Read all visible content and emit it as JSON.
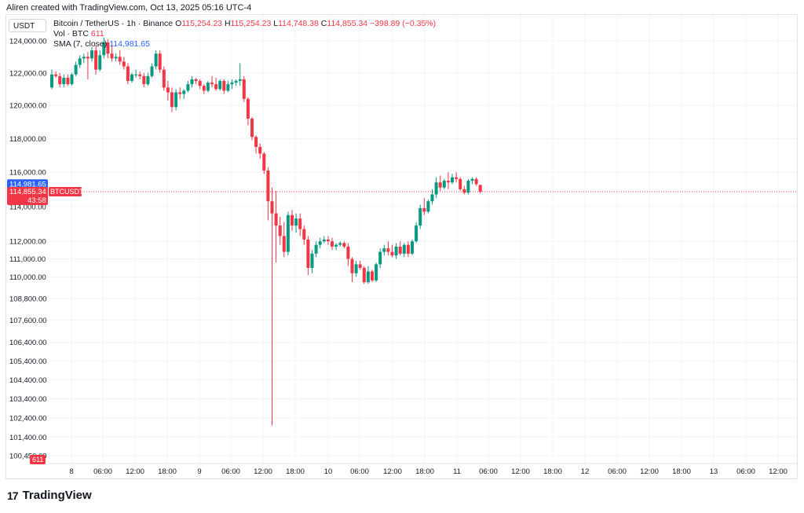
{
  "header": {
    "credit": "Aliren created with TradingView.com, Oct 13, 2025 05:16 UTC-4",
    "currency_badge": "USDT"
  },
  "legend": {
    "symbol": "Bitcoin / TetherUS · 1h · Binance",
    "o_label": "O",
    "o_value": "115,254.23",
    "h_label": "H",
    "h_value": "115,254.23",
    "l_label": "L",
    "l_value": "114,748.38",
    "c_label": "C",
    "c_value": "114,855.34",
    "change": "−398.89 (−0.35%)",
    "vol_label": "Vol · BTC",
    "vol_value": "611",
    "sma_label": "SMA (7, close)",
    "sma_value": "114,981.65"
  },
  "badges": {
    "sma_price": "114,981.65",
    "last_price": "114,855.34",
    "symbol": "BTCUSDT",
    "countdown": "43:58",
    "volume": "611"
  },
  "footer": {
    "logo_text": "TradingView"
  },
  "colors": {
    "up": "#089981",
    "down": "#f23645",
    "sma": "#2962ff",
    "grid": "#f0f3fa"
  },
  "chart_data": {
    "type": "candlestick",
    "y_axis": {
      "scale": "log",
      "tick_labels": [
        "124,000.00",
        "122,000.00",
        "120,000.00",
        "118,000.00",
        "116,000.00",
        "114,000.00",
        "112,000.00",
        "111,000.00",
        "110,000.00",
        "108,800.00",
        "107,600.00",
        "106,400.00",
        "105,400.00",
        "104,400.00",
        "103,400.00",
        "102,400.00",
        "101,400.00",
        "100,450.00"
      ],
      "tick_values": [
        124000,
        122000,
        120000,
        118000,
        116000,
        114000,
        112000,
        111000,
        110000,
        108800,
        107600,
        106400,
        105400,
        104400,
        103400,
        102400,
        101400,
        100450
      ]
    },
    "x_axis": {
      "tick_labels": [
        "8",
        "06:00",
        "12:00",
        "18:00",
        "9",
        "06:00",
        "12:00",
        "18:00",
        "10",
        "06:00",
        "12:00",
        "18:00",
        "11",
        "06:00",
        "12:00",
        "18:00",
        "12",
        "06:00",
        "12:00",
        "18:00",
        "13",
        "06:00",
        "12:00"
      ]
    },
    "candles": [
      [
        121100,
        122200,
        121000,
        121900
      ],
      [
        121900,
        122100,
        121700,
        121800
      ],
      [
        121800,
        122000,
        121100,
        121300
      ],
      [
        121300,
        121900,
        121100,
        121700
      ],
      [
        121700,
        121900,
        121200,
        121300
      ],
      [
        121300,
        122000,
        121200,
        121900
      ],
      [
        121900,
        122700,
        121800,
        122500
      ],
      [
        122500,
        123100,
        122300,
        122900
      ],
      [
        122900,
        123200,
        122600,
        123000
      ],
      [
        123000,
        123300,
        121600,
        122900
      ],
      [
        122900,
        123600,
        122700,
        123400
      ],
      [
        123400,
        123700,
        121900,
        122200
      ],
      [
        122200,
        123400,
        122100,
        123100
      ],
      [
        123100,
        124200,
        122900,
        123900
      ],
      [
        123900,
        124100,
        122900,
        123200
      ],
      [
        123200,
        123700,
        122700,
        122900
      ],
      [
        122900,
        123200,
        122700,
        123000
      ],
      [
        123000,
        123400,
        122500,
        122700
      ],
      [
        122700,
        123000,
        122200,
        122400
      ],
      [
        122400,
        122600,
        121300,
        121500
      ],
      [
        121500,
        122000,
        121400,
        121900
      ],
      [
        121900,
        122200,
        121700,
        121900
      ],
      [
        121900,
        122100,
        121600,
        121800
      ],
      [
        121800,
        122000,
        121100,
        121300
      ],
      [
        121300,
        122000,
        121200,
        121800
      ],
      [
        121800,
        122600,
        121700,
        122400
      ],
      [
        122400,
        123400,
        122200,
        123200
      ],
      [
        123200,
        123400,
        122000,
        122200
      ],
      [
        122200,
        122400,
        120900,
        121100
      ],
      [
        121100,
        121500,
        120300,
        120800
      ],
      [
        120800,
        121100,
        119600,
        119900
      ],
      [
        119900,
        121000,
        119700,
        120800
      ],
      [
        120800,
        121100,
        120400,
        120700
      ],
      [
        120700,
        121000,
        120400,
        120900
      ],
      [
        120900,
        121500,
        120800,
        121300
      ],
      [
        121300,
        121800,
        121100,
        121600
      ],
      [
        121600,
        121700,
        121300,
        121500
      ],
      [
        121500,
        121600,
        121000,
        121200
      ],
      [
        121200,
        121300,
        120700,
        120900
      ],
      [
        120900,
        121500,
        120800,
        121400
      ],
      [
        121400,
        121800,
        121100,
        121300
      ],
      [
        121300,
        121700,
        120900,
        121000
      ],
      [
        121000,
        121600,
        120900,
        121500
      ],
      [
        121500,
        121600,
        120700,
        120900
      ],
      [
        120900,
        121500,
        120800,
        121300
      ],
      [
        121300,
        121600,
        121000,
        121400
      ],
      [
        121400,
        121600,
        121200,
        121500
      ],
      [
        121500,
        122600,
        121200,
        121600
      ],
      [
        121600,
        121800,
        120200,
        120400
      ],
      [
        120400,
        120500,
        118800,
        119200
      ],
      [
        119200,
        119300,
        117900,
        118100
      ],
      [
        118100,
        118200,
        117100,
        117500
      ],
      [
        117500,
        117700,
        116800,
        117100
      ],
      [
        117100,
        117200,
        115900,
        116100
      ],
      [
        116100,
        116300,
        113200,
        114300
      ],
      [
        114300,
        115100,
        102000,
        113600
      ],
      [
        113600,
        114900,
        110800,
        112900
      ],
      [
        112900,
        113400,
        111800,
        112300
      ],
      [
        112300,
        113100,
        111100,
        111400
      ],
      [
        111400,
        113700,
        111200,
        113500
      ],
      [
        113500,
        113800,
        112600,
        112900
      ],
      [
        112900,
        113600,
        112500,
        113300
      ],
      [
        113300,
        113600,
        112300,
        112700
      ],
      [
        112700,
        112900,
        111800,
        112100
      ],
      [
        112100,
        112300,
        110100,
        110500
      ],
      [
        110500,
        111500,
        110200,
        111300
      ],
      [
        111300,
        112000,
        111100,
        111800
      ],
      [
        111800,
        112200,
        111600,
        112000
      ],
      [
        112000,
        112300,
        111900,
        112100
      ],
      [
        112100,
        112300,
        111800,
        112000
      ],
      [
        112000,
        112200,
        111500,
        111700
      ],
      [
        111700,
        111900,
        111500,
        111800
      ],
      [
        111800,
        112000,
        111700,
        111900
      ],
      [
        111900,
        112000,
        111600,
        111700
      ],
      [
        111700,
        111900,
        110600,
        111000
      ],
      [
        111000,
        111100,
        109700,
        110200
      ],
      [
        110200,
        110900,
        110000,
        110700
      ],
      [
        110700,
        110900,
        110400,
        110500
      ],
      [
        110500,
        110600,
        109600,
        109700
      ],
      [
        109700,
        110600,
        109600,
        110300
      ],
      [
        110300,
        110400,
        109700,
        109800
      ],
      [
        109800,
        110800,
        109700,
        110700
      ],
      [
        110700,
        111600,
        110500,
        111400
      ],
      [
        111400,
        111800,
        111200,
        111600
      ],
      [
        111600,
        112000,
        111200,
        111400
      ],
      [
        111400,
        111800,
        111100,
        111200
      ],
      [
        111200,
        111900,
        111000,
        111700
      ],
      [
        111700,
        112000,
        111200,
        111300
      ],
      [
        111300,
        111900,
        111100,
        111800
      ],
      [
        111800,
        112000,
        111100,
        111300
      ],
      [
        111300,
        112100,
        111200,
        112000
      ],
      [
        112000,
        113100,
        111900,
        112900
      ],
      [
        112900,
        114100,
        112700,
        113900
      ],
      [
        113900,
        114500,
        113500,
        113700
      ],
      [
        113700,
        114400,
        113600,
        114300
      ],
      [
        114300,
        115000,
        114100,
        114700
      ],
      [
        114700,
        115700,
        114500,
        115400
      ],
      [
        115400,
        115800,
        114900,
        115100
      ],
      [
        115100,
        115600,
        115000,
        115500
      ],
      [
        115500,
        116000,
        115000,
        115400
      ],
      [
        115400,
        115900,
        115300,
        115700
      ],
      [
        115700,
        116000,
        115400,
        115600
      ],
      [
        115600,
        115700,
        114900,
        115000
      ],
      [
        115000,
        115200,
        114700,
        114800
      ],
      [
        114800,
        115600,
        114700,
        115500
      ],
      [
        115500,
        115700,
        115300,
        115600
      ],
      [
        115600,
        115700,
        115200,
        115300
      ],
      [
        115254.23,
        115254.23,
        114748.38,
        114855.34
      ]
    ],
    "last_price": 114855.34,
    "sma_value": 114981.65
  }
}
